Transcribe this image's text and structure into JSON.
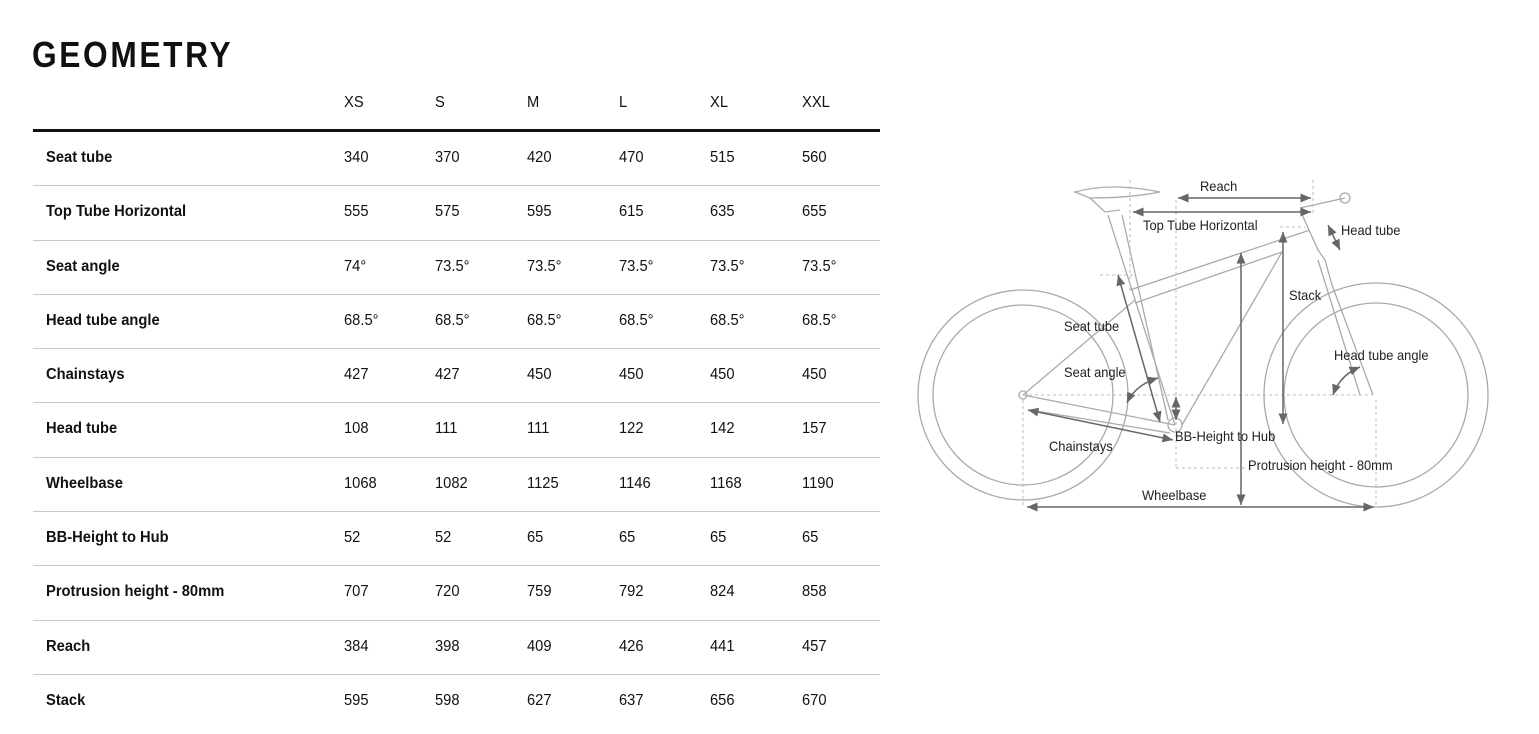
{
  "title": "GEOMETRY",
  "sizes": [
    "XS",
    "S",
    "M",
    "L",
    "XL",
    "XXL"
  ],
  "rows": [
    {
      "label": "Seat tube",
      "values": [
        "340",
        "370",
        "420",
        "470",
        "515",
        "560"
      ]
    },
    {
      "label": "Top Tube Horizontal",
      "values": [
        "555",
        "575",
        "595",
        "615",
        "635",
        "655"
      ]
    },
    {
      "label": "Seat angle",
      "values": [
        "74°",
        "73.5°",
        "73.5°",
        "73.5°",
        "73.5°",
        "73.5°"
      ]
    },
    {
      "label": "Head tube angle",
      "values": [
        "68.5°",
        "68.5°",
        "68.5°",
        "68.5°",
        "68.5°",
        "68.5°"
      ]
    },
    {
      "label": "Chainstays",
      "values": [
        "427",
        "427",
        "450",
        "450",
        "450",
        "450"
      ]
    },
    {
      "label": "Head tube",
      "values": [
        "108",
        "111",
        "111",
        "122",
        "142",
        "157"
      ]
    },
    {
      "label": "Wheelbase",
      "values": [
        "1068",
        "1082",
        "1125",
        "1146",
        "1168",
        "1190"
      ]
    },
    {
      "label": "BB-Height to Hub",
      "values": [
        "52",
        "52",
        "65",
        "65",
        "65",
        "65"
      ]
    },
    {
      "label": "Protrusion height - 80mm",
      "values": [
        "707",
        "720",
        "759",
        "792",
        "824",
        "858"
      ]
    },
    {
      "label": "Reach",
      "values": [
        "384",
        "398",
        "409",
        "426",
        "441",
        "457"
      ]
    },
    {
      "label": "Stack",
      "values": [
        "595",
        "598",
        "627",
        "637",
        "656",
        "670"
      ]
    }
  ],
  "diagram": {
    "reach": "Reach",
    "top_tube": "Top Tube Horizontal",
    "head_tube": "Head tube",
    "stack": "Stack",
    "seat_tube": "Seat tube",
    "head_tube_angle": "Head tube angle",
    "seat_angle": "Seat angle",
    "bb_height": "BB-Height to Hub",
    "chainstays": "Chainstays",
    "protrusion": "Protrusion height - 80mm",
    "wheelbase": "Wheelbase"
  }
}
